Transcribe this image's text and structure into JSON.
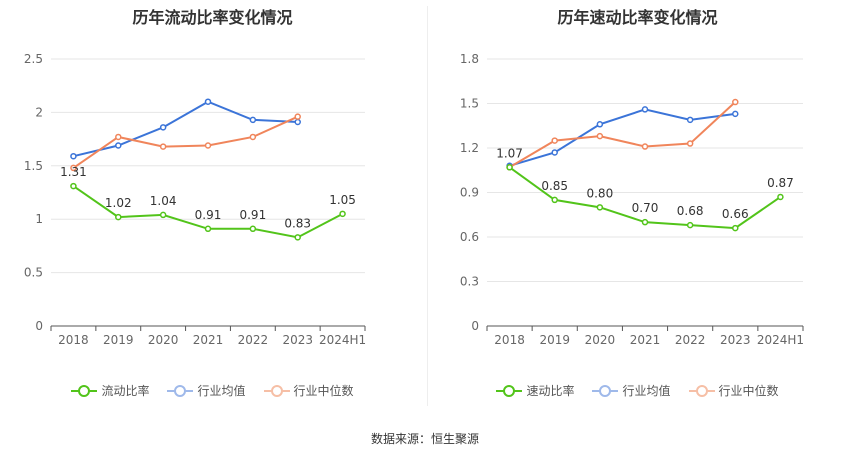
{
  "colors": {
    "series_main": "#52c41a",
    "series_avg": "#3b74d8",
    "series_median": "#f0855b",
    "grid": "#e6e6e6",
    "axis": "#555555",
    "tick_text": "#666666",
    "label_text": "#333333"
  },
  "source": "数据来源：恒生聚源",
  "chart_data": [
    {
      "type": "line",
      "title": "历年流动比率变化情况",
      "categories": [
        "2018",
        "2019",
        "2020",
        "2021",
        "2022",
        "2023",
        "2024H1"
      ],
      "ylim": [
        0,
        2.5
      ],
      "yticks": [
        0,
        0.5,
        1,
        1.5,
        2,
        2.5
      ],
      "ytick_labels": [
        "0",
        "0.5",
        "1",
        "1.5",
        "2",
        "2.5"
      ],
      "grid": true,
      "legend_position": "bottom",
      "series": [
        {
          "name": "流动比率",
          "values": [
            1.31,
            1.02,
            1.04,
            0.91,
            0.91,
            0.83,
            1.05
          ],
          "labels": [
            "1.31",
            "1.02",
            "1.04",
            "0.91",
            "0.91",
            "0.83",
            "1.05"
          ],
          "color": "#52c41a"
        },
        {
          "name": "行业均值",
          "values": [
            1.59,
            1.69,
            1.86,
            2.1,
            1.93,
            1.91,
            null
          ],
          "color": "#3b74d8"
        },
        {
          "name": "行业中位数",
          "values": [
            1.48,
            1.77,
            1.68,
            1.69,
            1.77,
            1.96,
            null
          ],
          "color": "#f0855b"
        }
      ]
    },
    {
      "type": "line",
      "title": "历年速动比率变化情况",
      "categories": [
        "2018",
        "2019",
        "2020",
        "2021",
        "2022",
        "2023",
        "2024H1"
      ],
      "ylim": [
        0,
        1.8
      ],
      "yticks": [
        0,
        0.3,
        0.6,
        0.9,
        1.2,
        1.5,
        1.8
      ],
      "ytick_labels": [
        "0",
        "0.3",
        "0.6",
        "0.9",
        "1.2",
        "1.5",
        "1.8"
      ],
      "grid": true,
      "legend_position": "bottom",
      "series": [
        {
          "name": "速动比率",
          "values": [
            1.07,
            0.85,
            0.8,
            0.7,
            0.68,
            0.66,
            0.87
          ],
          "labels": [
            "1.07",
            "0.85",
            "0.80",
            "0.70",
            "0.68",
            "0.66",
            "0.87"
          ],
          "color": "#52c41a"
        },
        {
          "name": "行业均值",
          "values": [
            1.08,
            1.17,
            1.36,
            1.46,
            1.39,
            1.43,
            null
          ],
          "color": "#3b74d8"
        },
        {
          "name": "行业中位数",
          "values": [
            1.07,
            1.25,
            1.28,
            1.21,
            1.23,
            1.51,
            null
          ],
          "color": "#f0855b"
        }
      ]
    }
  ]
}
